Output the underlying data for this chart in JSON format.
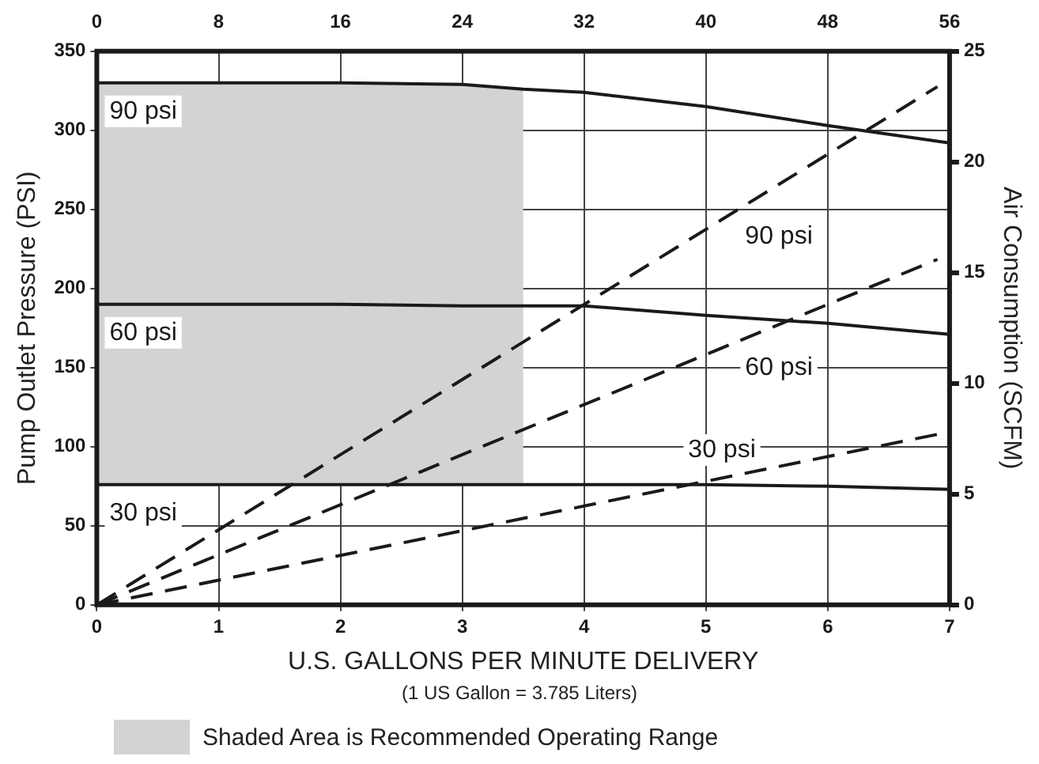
{
  "chart_data": {
    "type": "line",
    "xlabel": "U.S. GALLONS PER MINUTE DELIVERY",
    "ylabel": "Pump Outlet Pressure (PSI)",
    "y2label": "Air Consumption (SCFM)",
    "annotations": [
      "(1 US Gallon = 3.785 Liters)"
    ],
    "xlim": [
      0,
      7
    ],
    "xticks": [
      0,
      1,
      2,
      3,
      4,
      5,
      6,
      7
    ],
    "x2lim": [
      0,
      56
    ],
    "x2ticks": [
      0,
      8,
      16,
      24,
      32,
      40,
      48,
      56
    ],
    "ylim": [
      0,
      350
    ],
    "yticks": [
      0,
      50,
      100,
      150,
      200,
      250,
      300,
      350
    ],
    "y2lim": [
      0,
      25
    ],
    "y2ticks": [
      0,
      5,
      10,
      15,
      20,
      25
    ],
    "grid": true,
    "legend": "bottom",
    "marker": "none",
    "bands": [
      {
        "axis": "x",
        "from": 0,
        "to": 3.5,
        "label": "Shaded Area is Recommended Operating Range",
        "color": "#d1d3d4"
      }
    ],
    "series": [
      {
        "name": "90 psi",
        "color": "#1a1a1a",
        "line_style": "solid",
        "x": [
          0,
          1,
          2,
          3,
          3.5,
          4,
          5,
          6,
          7
        ],
        "values": [
          330,
          330,
          330,
          329,
          326,
          324,
          315,
          303,
          292
        ]
      },
      {
        "name": "60 psi",
        "color": "#1a1a1a",
        "line_style": "solid",
        "x": [
          0,
          1,
          2,
          3,
          4,
          5,
          6,
          7
        ],
        "values": [
          190,
          190,
          190,
          189,
          189,
          183,
          178,
          171
        ]
      },
      {
        "name": "30 psi",
        "color": "#1a1a1a",
        "line_style": "solid",
        "x": [
          0,
          1,
          2,
          3,
          4,
          5,
          6,
          7
        ],
        "values": [
          76,
          76,
          76,
          76,
          76,
          76,
          75,
          73
        ]
      },
      {
        "name": "90 psi",
        "color": "#1a1a1a",
        "line_style": "dashed",
        "axis": "y2",
        "x": [
          0,
          6.9
        ],
        "values": [
          0,
          23.4
        ]
      },
      {
        "name": "60 psi",
        "color": "#1a1a1a",
        "line_style": "dashed",
        "axis": "y2",
        "x": [
          0,
          6.9
        ],
        "values": [
          0,
          15.6
        ]
      },
      {
        "name": "30 psi",
        "color": "#1a1a1a",
        "line_style": "dashed",
        "axis": "y2",
        "x": [
          0,
          6.9
        ],
        "values": [
          0,
          7.7
        ]
      }
    ]
  }
}
